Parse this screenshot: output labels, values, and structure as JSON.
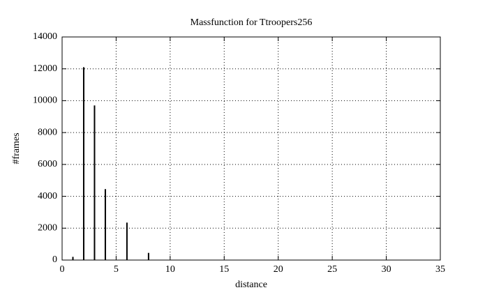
{
  "chart_data": {
    "type": "impulses",
    "title": "Massfunction for Ttroopers256",
    "x_label": "distance",
    "y_label": "#frames",
    "x": [
      1,
      2,
      3,
      4,
      6,
      8
    ],
    "values": [
      200,
      12100,
      9700,
      4450,
      2350,
      450
    ],
    "color": "#000000",
    "xlim": [
      0,
      35
    ],
    "xticks": [
      0,
      5,
      10,
      15,
      20,
      25,
      30,
      35
    ],
    "ylim": [
      0,
      14000
    ],
    "yticks": [
      0,
      2000,
      4000,
      6000,
      8000,
      10000,
      12000,
      14000
    ],
    "grid": true
  }
}
